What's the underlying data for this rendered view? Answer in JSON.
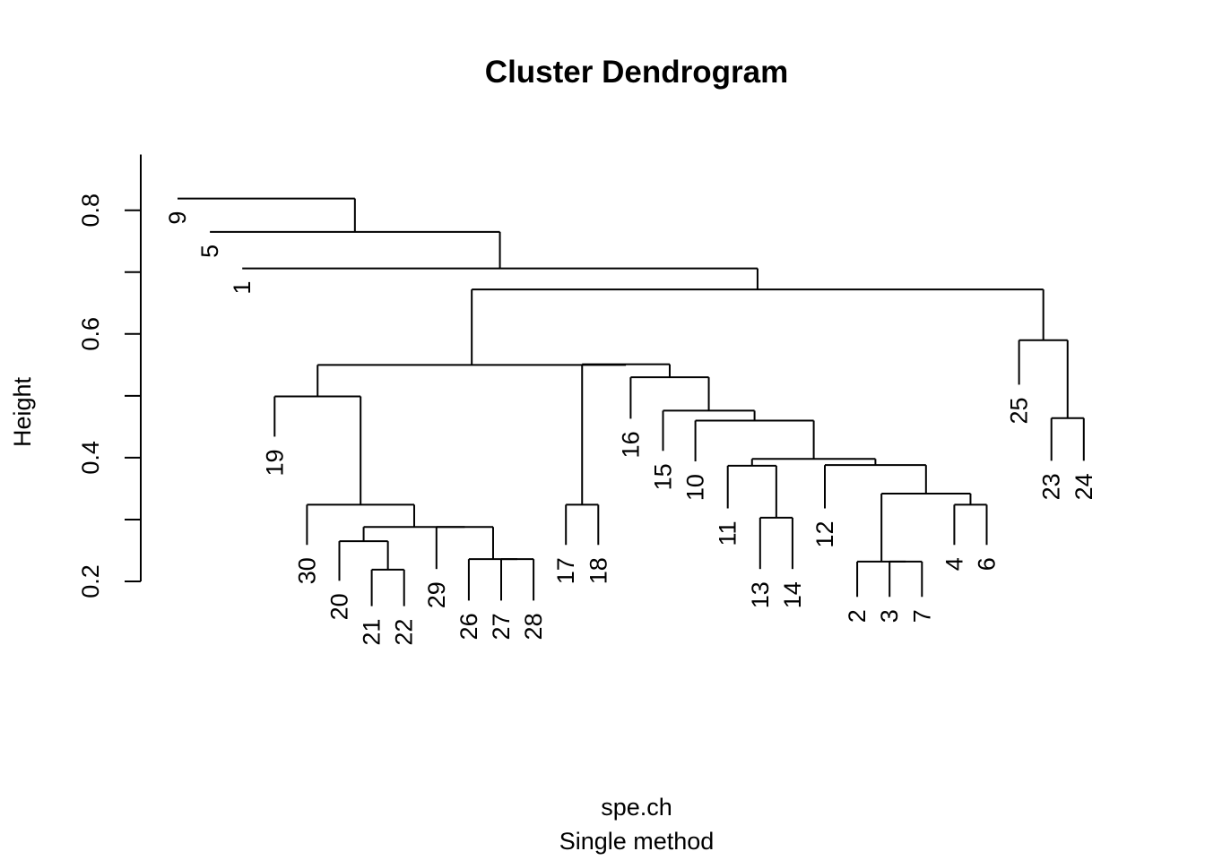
{
  "chart_data": {
    "type": "dendrogram",
    "title": "Cluster Dendrogram",
    "xlabel": "spe.ch",
    "sub": "Single method",
    "ylabel": "Height",
    "ylim": [
      0.2,
      0.9
    ],
    "yticks": [
      0.2,
      0.4,
      0.6,
      0.8
    ],
    "ytick_labels": [
      "0.2",
      "0.4",
      "0.6",
      "0.8"
    ],
    "leaf_order": [
      "9",
      "5",
      "1",
      "19",
      "30",
      "20",
      "21",
      "22",
      "29",
      "26",
      "27",
      "28",
      "17",
      "18",
      "16",
      "15",
      "10",
      "11",
      "13",
      "14",
      "12",
      "2",
      "3",
      "7",
      "4",
      "6",
      "25",
      "23",
      "24"
    ],
    "leaf_heights": [
      0.819,
      0.765,
      0.706,
      0.434,
      0.259,
      0.201,
      0.16,
      0.16,
      0.22,
      0.169,
      0.169,
      0.169,
      0.259,
      0.259,
      0.463,
      0.411,
      0.394,
      0.318,
      0.22,
      0.22,
      0.318,
      0.175,
      0.175,
      0.175,
      0.259,
      0.259,
      0.518,
      0.395,
      0.395
    ],
    "merges": [
      [
        0.819,
        -1,
        14
      ],
      [
        0.819,
        13,
        27
      ],
      [
        0.765,
        -2,
        14
      ],
      [
        0.765,
        3,
        25
      ],
      [
        0.706,
        -3,
        14
      ],
      [
        0.706,
        4,
        24
      ],
      [
        0.672,
        12,
        23
      ],
      [
        0.672,
        18,
        22
      ],
      [
        0.59,
        -27,
        23
      ],
      [
        0.59,
        21,
        23
      ],
      [
        0.464,
        -28,
        -29
      ],
      [
        0.55,
        11,
        19
      ],
      [
        0.55,
        15,
        20
      ],
      [
        0.499,
        -4,
        10
      ],
      [
        0.499,
        7,
        10
      ],
      [
        0.324,
        -5,
        9
      ],
      [
        0.324,
        8,
        9
      ],
      [
        0.288,
        5,
        8
      ],
      [
        0.288,
        6,
        8
      ],
      [
        0.265,
        -6,
        7
      ],
      [
        0.265,
        1,
        7
      ],
      [
        0.219,
        -7,
        -8
      ],
      [
        0.287,
        -9,
        6
      ],
      [
        0.288,
        3,
        6
      ],
      [
        0.236,
        -10,
        5
      ],
      [
        0.236,
        2,
        5
      ],
      [
        0.235,
        -11,
        -12
      ],
      [
        0.551,
        17,
        18
      ],
      [
        0.55,
        14,
        18
      ],
      [
        0.324,
        -13,
        -14
      ],
      [
        0.53,
        -15,
        16
      ],
      [
        0.53,
        13,
        16
      ],
      [
        0.476,
        -16,
        15
      ],
      [
        0.476,
        12,
        15
      ],
      [
        0.46,
        -17,
        14
      ],
      [
        0.46,
        11,
        14
      ],
      [
        0.398,
        9,
        13
      ],
      [
        0.398,
        10,
        13
      ],
      [
        0.387,
        -18,
        12
      ],
      [
        0.387,
        4,
        12
      ],
      [
        0.303,
        -19,
        -20
      ],
      [
        0.388,
        -21,
        11
      ],
      [
        0.388,
        8,
        11
      ],
      [
        0.342,
        7,
        10
      ],
      [
        0.342,
        6,
        10
      ],
      [
        0.232,
        -22,
        9
      ],
      [
        0.232,
        1,
        9
      ],
      [
        0.23,
        -23,
        -24
      ],
      [
        0.324,
        -25,
        -26
      ]
    ]
  }
}
